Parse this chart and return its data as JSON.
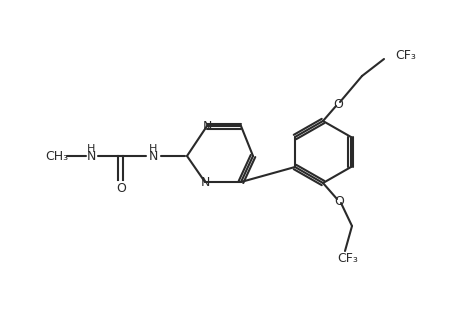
{
  "bg_color": "#ffffff",
  "line_color": "#2a2a2a",
  "line_width": 1.5,
  "font_size": 9,
  "fig_width": 4.6,
  "fig_height": 3.0,
  "dpi": 100
}
